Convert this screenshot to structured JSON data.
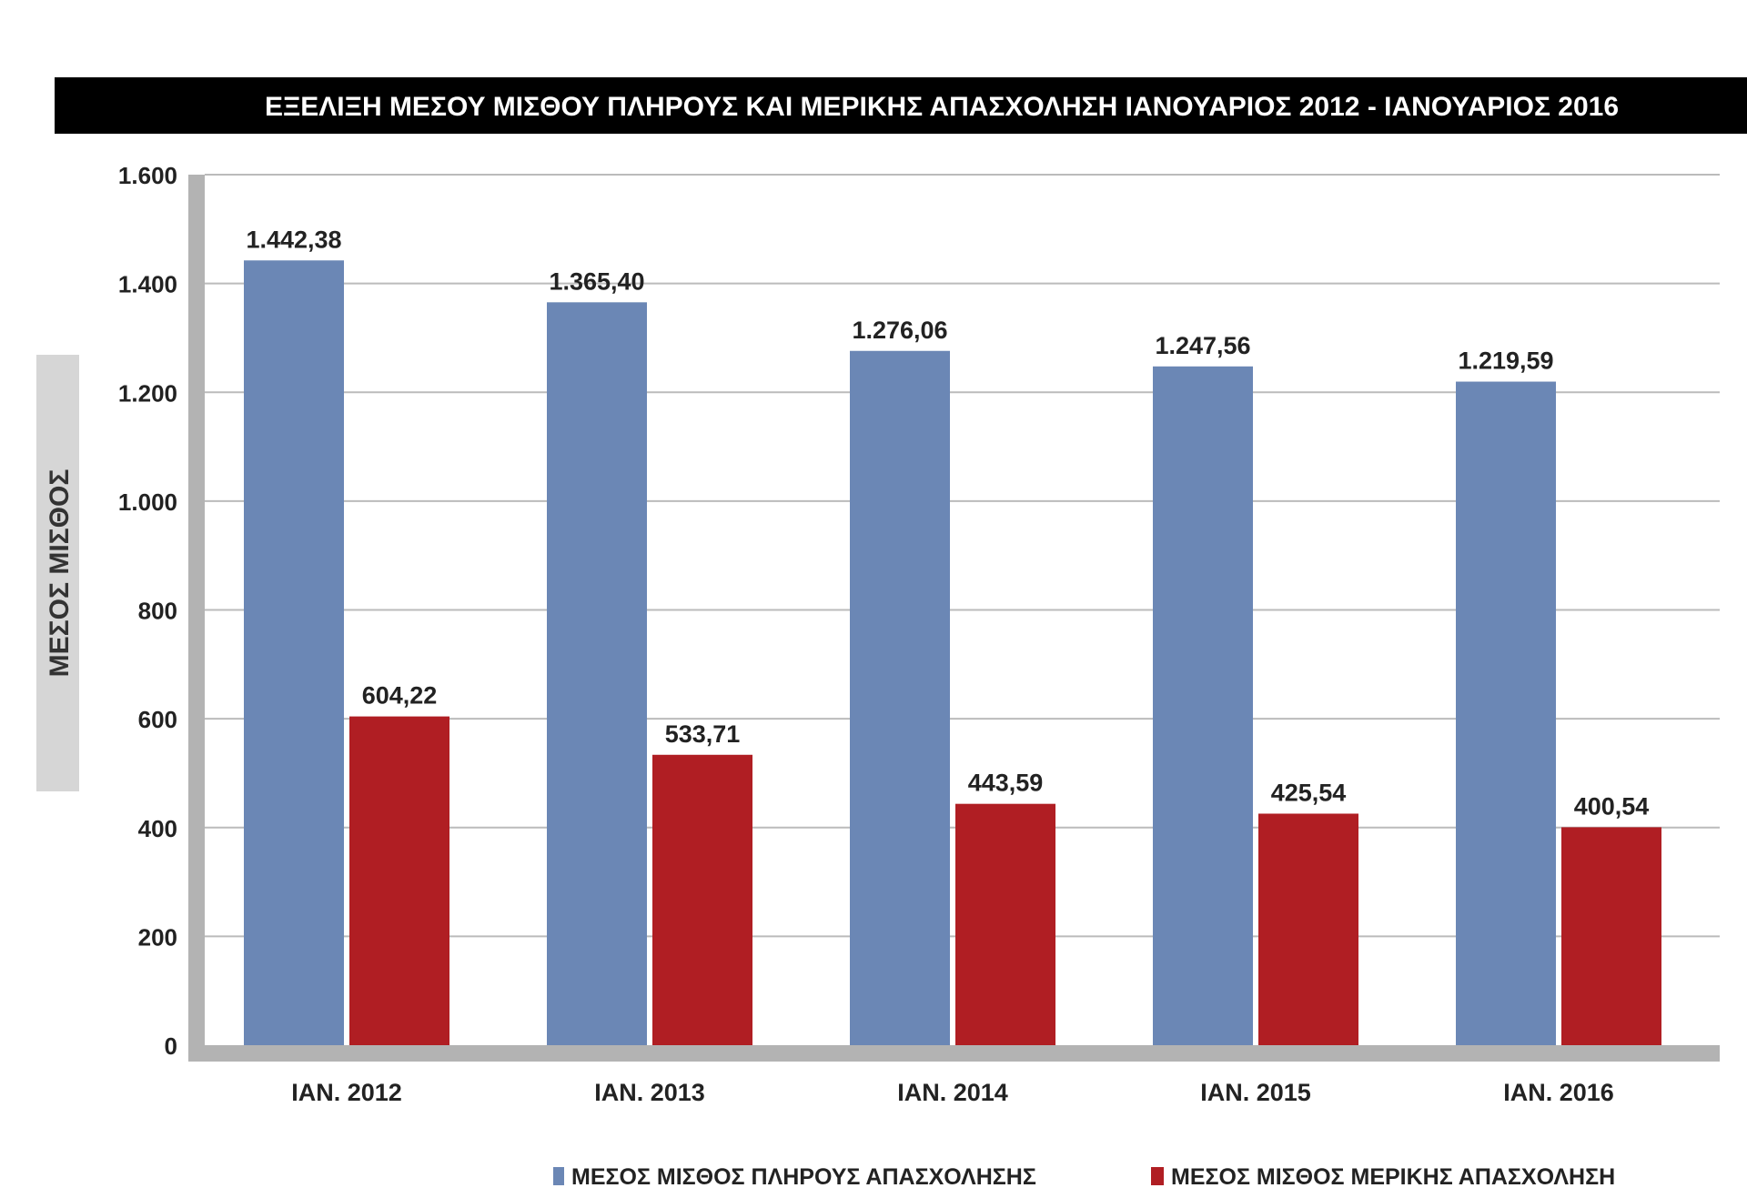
{
  "chart_data": {
    "type": "bar",
    "title": "ΕΞΕΛΙΞΗ ΜΕΣΟΥ ΜΙΣΘΟΥ ΠΛΗΡΟΥΣ ΚΑΙ ΜΕΡΙΚΗΣ ΑΠΑΣΧΟΛΗΣΗ ΙΑΝΟΥΑΡΙΟΣ 2012 - ΙΑΝΟΥΑΡΙΟΣ 2016",
    "ylabel": "ΜΕΣΟΣ ΜΙΣΘΟΣ",
    "xlabel": "",
    "categories": [
      "ΙΑΝ. 2012",
      "ΙΑΝ. 2013",
      "ΙΑΝ. 2014",
      "ΙΑΝ. 2015",
      "ΙΑΝ. 2016"
    ],
    "series": [
      {
        "name": "ΜΕΣΟΣ ΜΙΣΘΟΣ ΠΛΗΡΟΥΣ ΑΠΑΣΧΟΛΗΣΗΣ",
        "color": "#6b87b5",
        "values": [
          1442.38,
          1365.4,
          1276.06,
          1247.56,
          1219.59
        ],
        "labels": [
          "1.442,38",
          "1.365,40",
          "1.276,06",
          "1.247,56",
          "1.219,59"
        ]
      },
      {
        "name": "ΜΕΣΟΣ ΜΙΣΘΟΣ ΜΕΡΙΚΗΣ ΑΠΑΣΧΟΛΗΣΗ",
        "color": "#b01e23",
        "values": [
          604.22,
          533.71,
          443.59,
          425.54,
          400.54
        ],
        "labels": [
          "604,22",
          "533,71",
          "443,59",
          "425,54",
          "400,54"
        ]
      }
    ],
    "ylim": [
      0,
      1600
    ],
    "yticks": [
      0,
      200,
      400,
      600,
      800,
      1000,
      1200,
      1400,
      1600
    ],
    "ytick_labels": [
      "0",
      "200",
      "400",
      "600",
      "800",
      "1.000",
      "1.200",
      "1.400",
      "1.600"
    ],
    "grid": true,
    "legend_position": "bottom-right",
    "colors": {
      "title_bar": "#000000",
      "gridline": "#bbbbbb",
      "axis_wall": "#b3b3b3",
      "ylabel_box": "#d6d6d6"
    }
  }
}
